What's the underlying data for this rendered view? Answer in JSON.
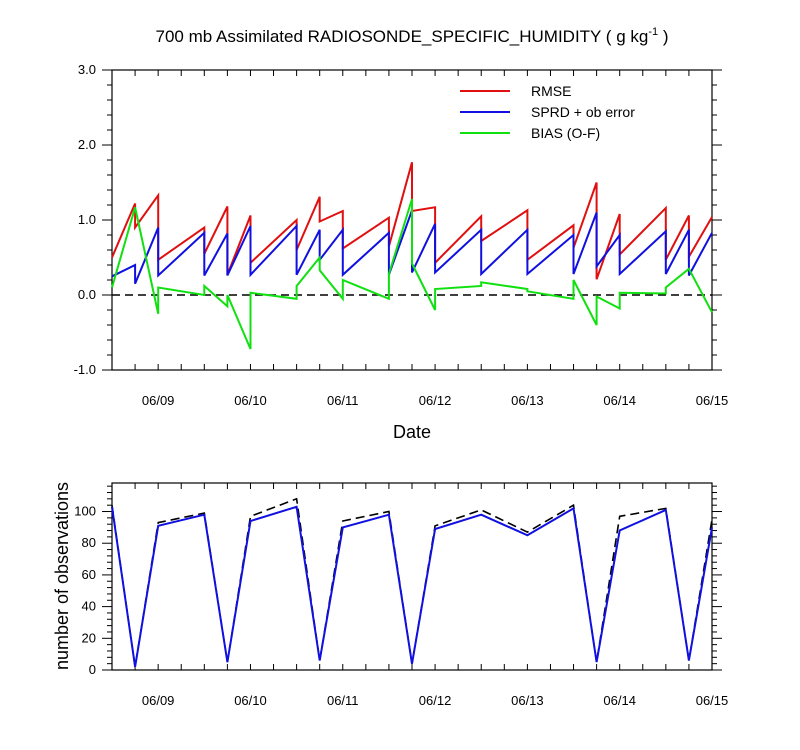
{
  "chart_data": [
    {
      "type": "line",
      "title": "700 mb Assimilated RADIOSONDE_SPECIFIC_HUMIDITY ( g kg",
      "title_sup": "-1",
      "title_end": " )",
      "xlabel": "Date",
      "ylabel": "",
      "xlim": [
        0,
        6.5
      ],
      "ylim": [
        -1.0,
        3.0
      ],
      "yticks": [
        "-1.0",
        "0.0",
        "1.0",
        "2.0",
        "3.0"
      ],
      "yticks_values": [
        -1.0,
        0.0,
        1.0,
        2.0,
        3.0
      ],
      "xticks": [
        "06/09",
        "06/10",
        "06/11",
        "06/12",
        "06/13",
        "06/14",
        "06/15"
      ],
      "xticks_values": [
        0.5,
        1.5,
        2.5,
        3.5,
        4.5,
        5.5,
        6.5
      ],
      "zero_line": true,
      "legend_position": "top-right",
      "series": [
        {
          "name": "RMSE",
          "color": "#e01010",
          "x": [
            0,
            0.25,
            0.25,
            0.5,
            0.5,
            1.0,
            1.0,
            1.25,
            1.25,
            1.5,
            1.5,
            2.0,
            2.0,
            2.25,
            2.25,
            2.5,
            2.5,
            3.0,
            3.0,
            3.25,
            3.25,
            3.5,
            3.5,
            4.0,
            4.0,
            4.5,
            4.5,
            5.0,
            5.0,
            5.25,
            5.25,
            5.5,
            5.5,
            6.0,
            6.0,
            6.25,
            6.25,
            6.5
          ],
          "y": [
            0.5,
            1.22,
            0.9,
            1.33,
            0.47,
            0.9,
            0.55,
            1.18,
            0.27,
            1.06,
            0.43,
            1.0,
            0.6,
            1.31,
            0.98,
            1.12,
            0.62,
            1.03,
            0.65,
            1.77,
            1.12,
            1.17,
            0.43,
            1.05,
            0.72,
            1.13,
            0.47,
            0.93,
            0.63,
            1.5,
            0.21,
            1.08,
            0.54,
            1.16,
            0.47,
            1.06,
            0.51,
            1.04
          ]
        },
        {
          "name": "SPRD + ob error",
          "color": "#1010e0",
          "x": [
            0,
            0.25,
            0.25,
            0.5,
            0.5,
            1.0,
            1.0,
            1.25,
            1.25,
            1.5,
            1.5,
            2.0,
            2.0,
            2.25,
            2.25,
            2.5,
            2.5,
            3.0,
            3.0,
            3.25,
            3.25,
            3.5,
            3.5,
            4.0,
            4.0,
            4.5,
            4.5,
            5.0,
            5.0,
            5.25,
            5.25,
            5.5,
            5.5,
            6.0,
            6.0,
            6.25,
            6.25,
            6.5
          ],
          "y": [
            0.25,
            0.4,
            0.15,
            0.9,
            0.26,
            0.83,
            0.26,
            0.82,
            0.26,
            0.92,
            0.27,
            0.92,
            0.27,
            0.87,
            0.47,
            0.87,
            0.27,
            0.83,
            0.27,
            1.13,
            0.3,
            0.95,
            0.3,
            0.87,
            0.28,
            0.87,
            0.28,
            0.8,
            0.28,
            1.1,
            0.38,
            0.8,
            0.28,
            0.85,
            0.28,
            0.87,
            0.26,
            0.83
          ]
        },
        {
          "name": "BIAS (O-F)",
          "color": "#10e010",
          "x": [
            0,
            0.25,
            0.5,
            0.5,
            1.0,
            1.0,
            1.25,
            1.25,
            1.5,
            1.5,
            2.0,
            2.0,
            2.25,
            2.25,
            2.5,
            2.5,
            3.0,
            3.0,
            3.25,
            3.25,
            3.5,
            3.5,
            4.0,
            4.0,
            4.5,
            4.5,
            5.0,
            5.0,
            5.25,
            5.25,
            5.5,
            5.5,
            6.0,
            6.0,
            6.25,
            6.5
          ],
          "y": [
            0.1,
            1.17,
            -0.25,
            0.1,
            0.0,
            0.12,
            -0.15,
            0.0,
            -0.72,
            0.03,
            -0.05,
            0.12,
            0.5,
            0.33,
            -0.05,
            0.2,
            -0.05,
            0.28,
            1.28,
            0.42,
            -0.2,
            0.08,
            0.12,
            0.17,
            0.08,
            0.05,
            -0.05,
            0.2,
            -0.4,
            -0.02,
            -0.18,
            0.03,
            0.02,
            0.1,
            0.35,
            -0.23
          ]
        }
      ]
    },
    {
      "type": "line",
      "title": "",
      "xlabel": "",
      "ylabel": "number of observations",
      "xlim": [
        0,
        6.5
      ],
      "ylim": [
        0,
        118
      ],
      "yticks": [
        "0",
        "20",
        "40",
        "60",
        "80",
        "100"
      ],
      "yticks_values": [
        0,
        20,
        40,
        60,
        80,
        100
      ],
      "xticks": [
        "06/09",
        "06/10",
        "06/11",
        "06/12",
        "06/13",
        "06/14",
        "06/15"
      ],
      "xticks_values": [
        0.5,
        1.5,
        2.5,
        3.5,
        4.5,
        5.5,
        6.5
      ],
      "series": [
        {
          "color": "#000000",
          "dash": true,
          "x": [
            0,
            0.25,
            0.5,
            1.0,
            1.25,
            1.5,
            2.0,
            2.25,
            2.5,
            3.0,
            3.25,
            3.5,
            4.0,
            4.5,
            5.0,
            5.25,
            5.5,
            6.0,
            6.25,
            6.5
          ],
          "y": [
            104,
            2,
            93,
            99,
            5,
            97,
            108,
            6,
            94,
            100,
            4,
            91,
            101,
            87,
            104,
            5,
            97,
            102,
            6,
            95
          ]
        },
        {
          "color": "#1010e0",
          "x": [
            0,
            0.25,
            0.5,
            1.0,
            1.25,
            1.5,
            2.0,
            2.25,
            2.5,
            3.0,
            3.25,
            3.5,
            4.0,
            4.5,
            5.0,
            5.25,
            5.5,
            6.0,
            6.25,
            6.5
          ],
          "y": [
            103,
            2,
            91,
            98,
            5,
            94,
            103,
            6,
            90,
            98,
            4,
            89,
            98,
            85,
            102,
            5,
            88,
            101,
            6,
            90
          ]
        }
      ]
    }
  ]
}
